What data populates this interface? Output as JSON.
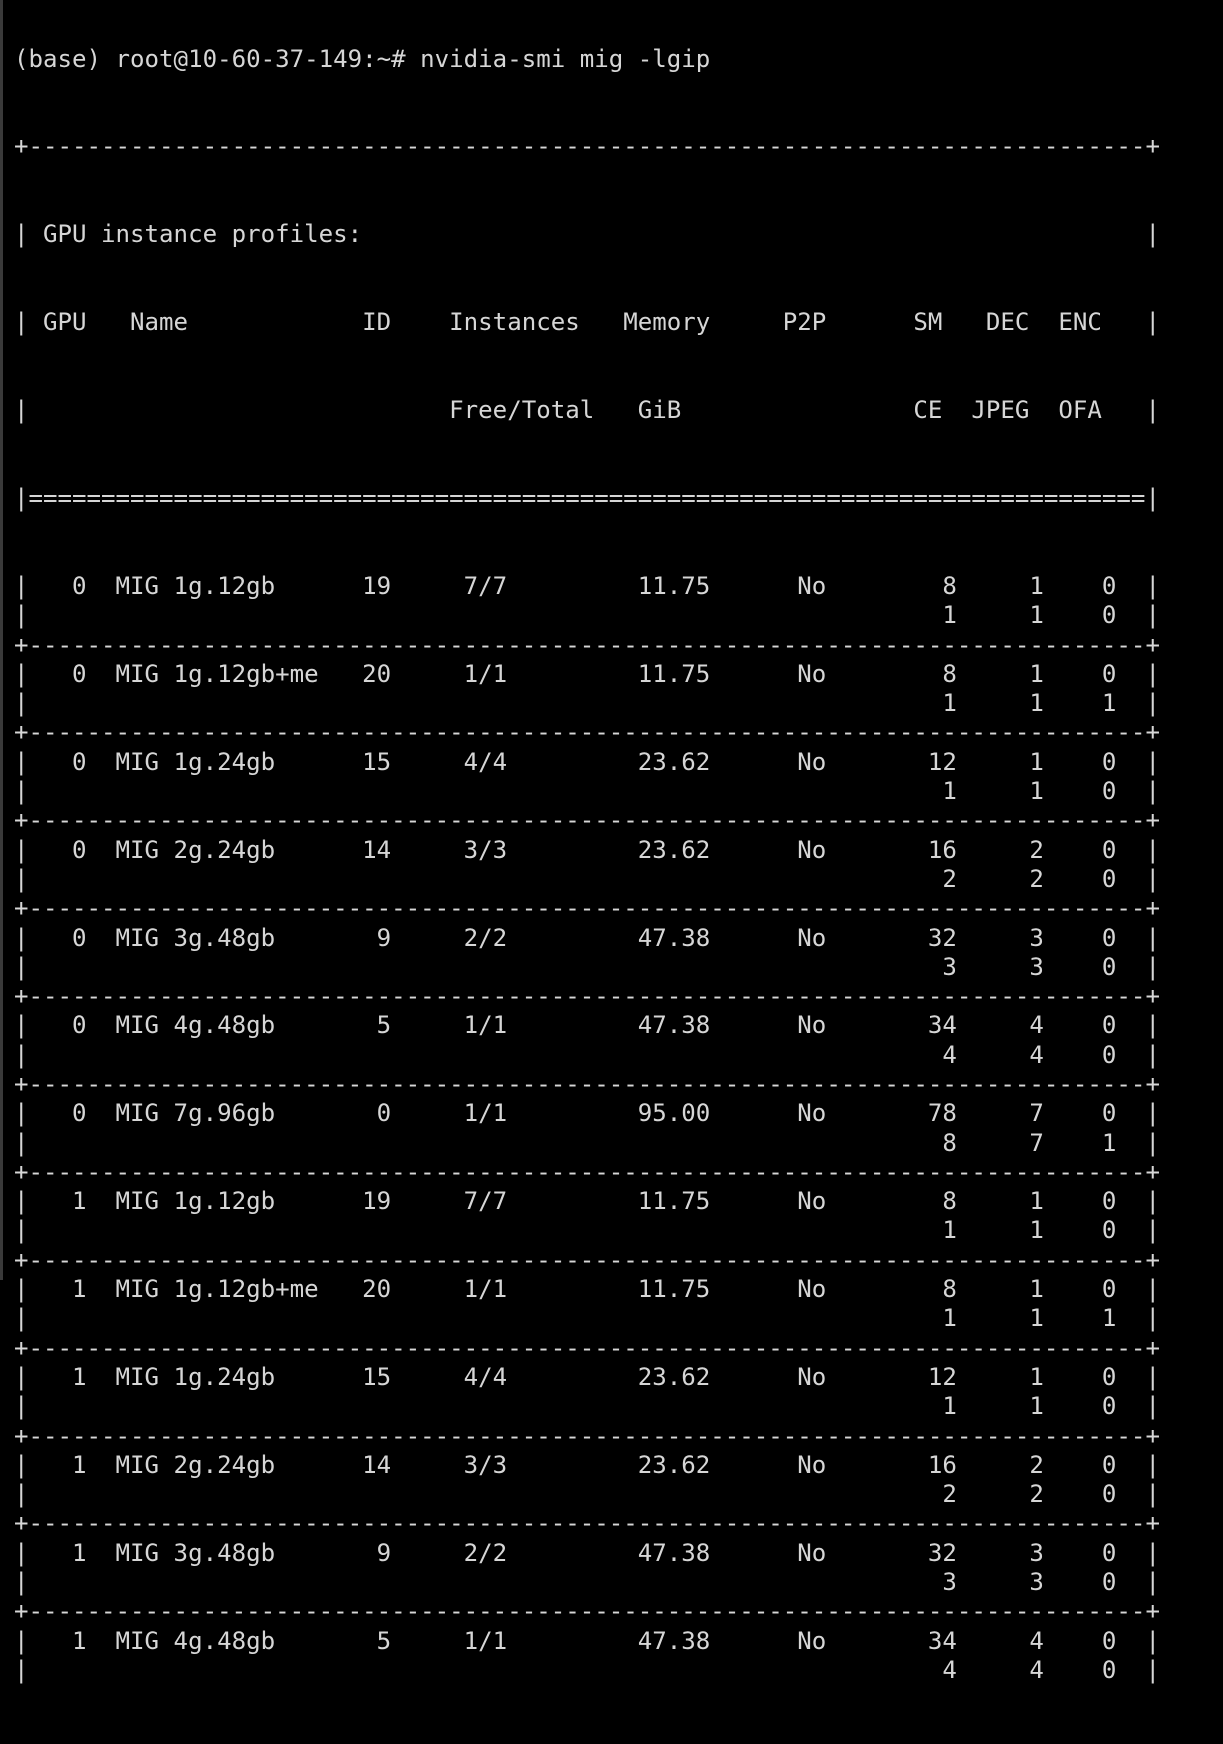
{
  "window": {
    "background": "#000000",
    "foreground": "#d6d6d6"
  },
  "prompt": "(base) root@10-60-37-149:~# nvidia-smi mig -lgip",
  "table": {
    "border_top": "+-----------------------------------------------------------------------------+",
    "title": "GPU instance profiles:",
    "header_row1": [
      "GPU",
      "Name",
      "ID",
      "Instances",
      "Memory",
      "P2P",
      "SM",
      "DEC",
      "ENC"
    ],
    "header_row2": [
      "",
      "",
      "",
      "Free/Total",
      "GiB",
      "",
      "CE",
      "JPEG",
      "OFA"
    ],
    "header_separator": "|=============================================================================|",
    "row_separator": "+-----------------------------------------------------------------------------+",
    "rows": [
      {
        "gpu": "0",
        "name": "MIG 1g.12gb",
        "id": "19",
        "instances": "7/7",
        "memory": "11.75",
        "p2p": "No",
        "sm": "8",
        "dec": "1",
        "enc": "0",
        "ce": "1",
        "jpeg": "1",
        "ofa": "0"
      },
      {
        "gpu": "0",
        "name": "MIG 1g.12gb+me",
        "id": "20",
        "instances": "1/1",
        "memory": "11.75",
        "p2p": "No",
        "sm": "8",
        "dec": "1",
        "enc": "0",
        "ce": "1",
        "jpeg": "1",
        "ofa": "1"
      },
      {
        "gpu": "0",
        "name": "MIG 1g.24gb",
        "id": "15",
        "instances": "4/4",
        "memory": "23.62",
        "p2p": "No",
        "sm": "12",
        "dec": "1",
        "enc": "0",
        "ce": "1",
        "jpeg": "1",
        "ofa": "0"
      },
      {
        "gpu": "0",
        "name": "MIG 2g.24gb",
        "id": "14",
        "instances": "3/3",
        "memory": "23.62",
        "p2p": "No",
        "sm": "16",
        "dec": "2",
        "enc": "0",
        "ce": "2",
        "jpeg": "2",
        "ofa": "0"
      },
      {
        "gpu": "0",
        "name": "MIG 3g.48gb",
        "id": "9",
        "instances": "2/2",
        "memory": "47.38",
        "p2p": "No",
        "sm": "32",
        "dec": "3",
        "enc": "0",
        "ce": "3",
        "jpeg": "3",
        "ofa": "0"
      },
      {
        "gpu": "0",
        "name": "MIG 4g.48gb",
        "id": "5",
        "instances": "1/1",
        "memory": "47.38",
        "p2p": "No",
        "sm": "34",
        "dec": "4",
        "enc": "0",
        "ce": "4",
        "jpeg": "4",
        "ofa": "0"
      },
      {
        "gpu": "0",
        "name": "MIG 7g.96gb",
        "id": "0",
        "instances": "1/1",
        "memory": "95.00",
        "p2p": "No",
        "sm": "78",
        "dec": "7",
        "enc": "0",
        "ce": "8",
        "jpeg": "7",
        "ofa": "1"
      },
      {
        "gpu": "1",
        "name": "MIG 1g.12gb",
        "id": "19",
        "instances": "7/7",
        "memory": "11.75",
        "p2p": "No",
        "sm": "8",
        "dec": "1",
        "enc": "0",
        "ce": "1",
        "jpeg": "1",
        "ofa": "0"
      },
      {
        "gpu": "1",
        "name": "MIG 1g.12gb+me",
        "id": "20",
        "instances": "1/1",
        "memory": "11.75",
        "p2p": "No",
        "sm": "8",
        "dec": "1",
        "enc": "0",
        "ce": "1",
        "jpeg": "1",
        "ofa": "1"
      },
      {
        "gpu": "1",
        "name": "MIG 1g.24gb",
        "id": "15",
        "instances": "4/4",
        "memory": "23.62",
        "p2p": "No",
        "sm": "12",
        "dec": "1",
        "enc": "0",
        "ce": "1",
        "jpeg": "1",
        "ofa": "0"
      },
      {
        "gpu": "1",
        "name": "MIG 2g.24gb",
        "id": "14",
        "instances": "3/3",
        "memory": "23.62",
        "p2p": "No",
        "sm": "16",
        "dec": "2",
        "enc": "0",
        "ce": "2",
        "jpeg": "2",
        "ofa": "0"
      },
      {
        "gpu": "1",
        "name": "MIG 3g.48gb",
        "id": "9",
        "instances": "2/2",
        "memory": "47.38",
        "p2p": "No",
        "sm": "32",
        "dec": "3",
        "enc": "0",
        "ce": "3",
        "jpeg": "3",
        "ofa": "0"
      },
      {
        "gpu": "1",
        "name": "MIG 4g.48gb",
        "id": "5",
        "instances": "1/1",
        "memory": "47.38",
        "p2p": "No",
        "sm": "34",
        "dec": "4",
        "enc": "0",
        "ce": "4",
        "jpeg": "4",
        "ofa": "0"
      }
    ]
  }
}
